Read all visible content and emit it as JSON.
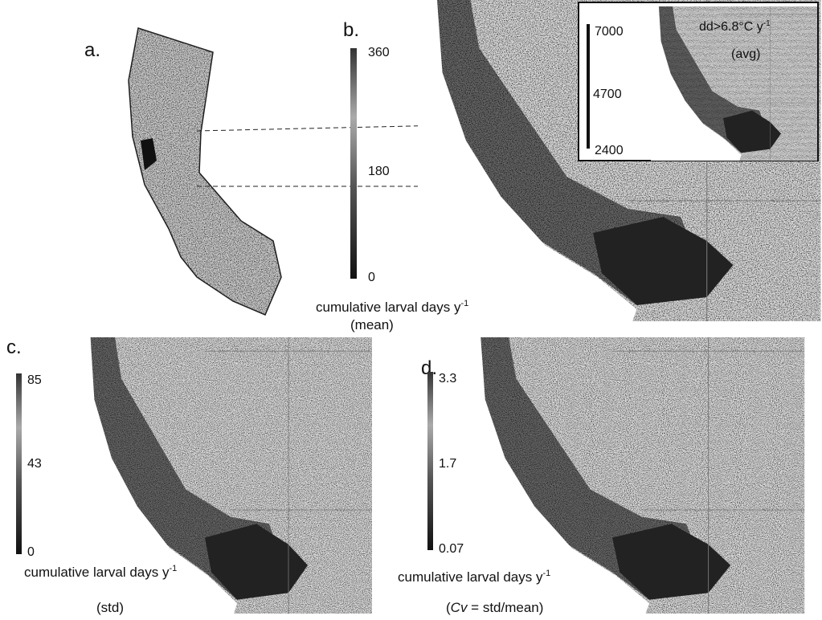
{
  "panel_a": {
    "label": "a."
  },
  "panel_b": {
    "label": "b.",
    "colorbar": [
      "360",
      "180",
      "0"
    ],
    "caption": {
      "text": "cumulative larval days y",
      "sup": "-1",
      "line2": "(mean)"
    },
    "inset": {
      "colorbar": [
        "7000",
        "4700",
        "2400"
      ],
      "title": "dd>6.8°C y",
      "title_sup": "-1",
      "subtitle": "(avg)"
    }
  },
  "panel_c": {
    "label": "c.",
    "colorbar": [
      "85",
      "43",
      "0"
    ],
    "caption": {
      "text": "cumulative larval days y",
      "sup": "-1",
      "line2": "(std)"
    }
  },
  "panel_d": {
    "label": "d.",
    "colorbar": [
      "3.3",
      "1.7",
      "0.07"
    ],
    "caption": {
      "text": "cumulative larval days y",
      "sup": "-1",
      "line2_open": "(",
      "line2_italic": "Cv",
      "line2_rest": " = std/mean)"
    }
  }
}
